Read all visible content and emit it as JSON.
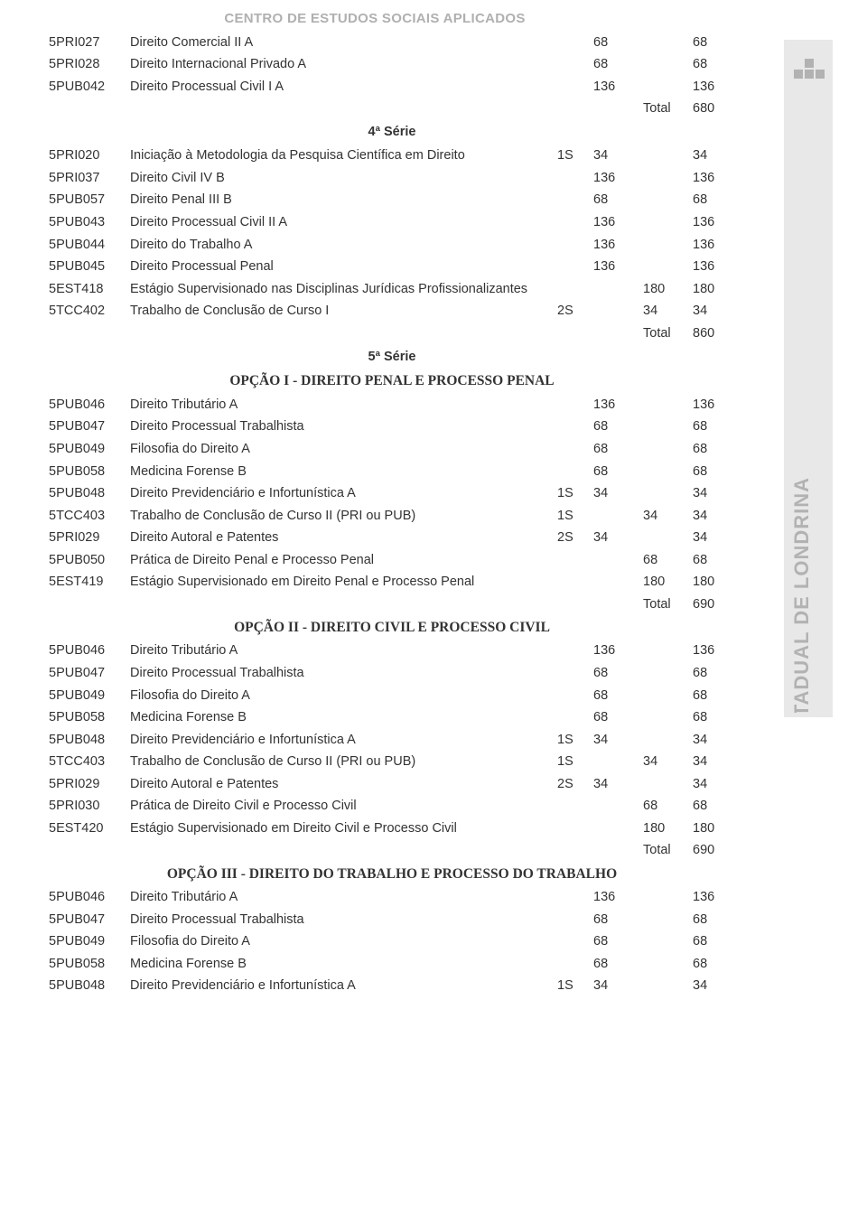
{
  "header": "CENTRO DE ESTUDOS SOCIAIS APLICADOS",
  "side_text": "UNIVERSIDADE ESTADUAL DE LONDRINA",
  "side_bg": "#e8e8e8",
  "side_text_color": "#b2b2b2",
  "text_color": "#333333",
  "header_color": "#b0b0b0",
  "font_size_body": 14.5,
  "font_size_header": 15,
  "rows": [
    {
      "type": "row",
      "code": "5PRI027",
      "name": "Direito Comercial II  A",
      "sem": "",
      "h1": "68",
      "h2": "",
      "h3": "68"
    },
    {
      "type": "row",
      "code": "5PRI028",
      "name": "Direito Internacional Privado A",
      "sem": "",
      "h1": "68",
      "h2": "",
      "h3": "68"
    },
    {
      "type": "row",
      "code": "5PUB042",
      "name": "Direito Processual Civil I A",
      "sem": "",
      "h1": "136",
      "h2": "",
      "h3": "136"
    },
    {
      "type": "total",
      "label": "Total",
      "value": "680"
    },
    {
      "type": "section",
      "label": "4ª Série"
    },
    {
      "type": "row",
      "code": "5PRI020",
      "name": "Iniciação à Metodologia da Pesquisa Científica em Direito",
      "sem": "1S",
      "h1": "34",
      "h2": "",
      "h3": "34"
    },
    {
      "type": "row",
      "code": "5PRI037",
      "name": "Direito Civil IV B",
      "sem": "",
      "h1": "136",
      "h2": "",
      "h3": "136"
    },
    {
      "type": "row",
      "code": "5PUB057",
      "name": "Direito Penal III B",
      "sem": "",
      "h1": "68",
      "h2": "",
      "h3": "68"
    },
    {
      "type": "row",
      "code": "5PUB043",
      "name": "Direito Processual Civil II A",
      "sem": "",
      "h1": "136",
      "h2": "",
      "h3": "136"
    },
    {
      "type": "row",
      "code": "5PUB044",
      "name": "Direito do Trabalho A",
      "sem": "",
      "h1": "136",
      "h2": "",
      "h3": "136"
    },
    {
      "type": "row",
      "code": "5PUB045",
      "name": "Direito Processual Penal",
      "sem": "",
      "h1": "136",
      "h2": "",
      "h3": "136"
    },
    {
      "type": "row",
      "code": "5EST418",
      "name": "Estágio Supervisionado nas Disciplinas Jurídicas Profissionalizantes",
      "sem": "",
      "h1": "",
      "h2": "180",
      "h3": "180"
    },
    {
      "type": "row",
      "code": "5TCC402",
      "name": "Trabalho de Conclusão de Curso I",
      "sem": "2S",
      "h1": "",
      "h2": "34",
      "h3": "34"
    },
    {
      "type": "total",
      "label": "Total",
      "value": "860"
    },
    {
      "type": "section",
      "label": "5ª Série"
    },
    {
      "type": "section-serif",
      "label": "OPÇÃO I - DIREITO PENAL E PROCESSO PENAL"
    },
    {
      "type": "row",
      "code": "5PUB046",
      "name": "Direito Tributário A",
      "sem": "",
      "h1": "136",
      "h2": "",
      "h3": "136"
    },
    {
      "type": "row",
      "code": "5PUB047",
      "name": "Direito Processual Trabalhista",
      "sem": "",
      "h1": "68",
      "h2": "",
      "h3": "68"
    },
    {
      "type": "row",
      "code": "5PUB049",
      "name": "Filosofia do Direito A",
      "sem": "",
      "h1": "68",
      "h2": "",
      "h3": "68"
    },
    {
      "type": "row",
      "code": "5PUB058",
      "name": "Medicina Forense B",
      "sem": "",
      "h1": "68",
      "h2": "",
      "h3": "68"
    },
    {
      "type": "row",
      "code": "5PUB048",
      "name": "Direito Previdenciário e Infortunística A",
      "sem": "1S",
      "h1": "34",
      "h2": "",
      "h3": "34"
    },
    {
      "type": "row",
      "code": "5TCC403",
      "name": "Trabalho de Conclusão de Curso II (PRI ou PUB)",
      "sem": "1S",
      "h1": "",
      "h2": "34",
      "h3": "34"
    },
    {
      "type": "row",
      "code": "5PRI029",
      "name": "Direito Autoral e Patentes",
      "sem": "2S",
      "h1": "34",
      "h2": "",
      "h3": "34"
    },
    {
      "type": "row",
      "code": "5PUB050",
      "name": "Prática de Direito Penal e Processo Penal",
      "sem": "",
      "h1": "",
      "h2": "68",
      "h3": "68"
    },
    {
      "type": "row",
      "code": "5EST419",
      "name": "Estágio Supervisionado em Direito Penal e Processo Penal",
      "sem": "",
      "h1": "",
      "h2": "180",
      "h3": "180"
    },
    {
      "type": "total",
      "label": "Total",
      "value": "690"
    },
    {
      "type": "section-serif",
      "label": "OPÇÃO II - DIREITO CIVIL E PROCESSO CIVIL"
    },
    {
      "type": "row",
      "code": "5PUB046",
      "name": "Direito Tributário A",
      "sem": "",
      "h1": "136",
      "h2": "",
      "h3": "136"
    },
    {
      "type": "row",
      "code": "5PUB047",
      "name": "Direito Processual Trabalhista",
      "sem": "",
      "h1": "68",
      "h2": "",
      "h3": "68"
    },
    {
      "type": "row",
      "code": "5PUB049",
      "name": "Filosofia do Direito A",
      "sem": "",
      "h1": "68",
      "h2": "",
      "h3": "68"
    },
    {
      "type": "row",
      "code": "5PUB058",
      "name": "Medicina Forense B",
      "sem": "",
      "h1": "68",
      "h2": "",
      "h3": "68"
    },
    {
      "type": "row",
      "code": "5PUB048",
      "name": "Direito Previdenciário e Infortunística A",
      "sem": "1S",
      "h1": "34",
      "h2": "",
      "h3": "34"
    },
    {
      "type": "row",
      "code": "5TCC403",
      "name": "Trabalho de Conclusão de Curso II (PRI ou PUB)",
      "sem": "1S",
      "h1": "",
      "h2": "34",
      "h3": "34"
    },
    {
      "type": "row",
      "code": "5PRI029",
      "name": "Direito Autoral e Patentes",
      "sem": "2S",
      "h1": "34",
      "h2": "",
      "h3": "34"
    },
    {
      "type": "row",
      "code": "5PRI030",
      "name": "Prática de Direito Civil e Processo Civil",
      "sem": "",
      "h1": "",
      "h2": "68",
      "h3": "68"
    },
    {
      "type": "row",
      "code": "5EST420",
      "name": "Estágio Supervisionado em Direito Civil e Processo Civil",
      "sem": "",
      "h1": "",
      "h2": "180",
      "h3": "180"
    },
    {
      "type": "total",
      "label": "Total",
      "value": "690"
    },
    {
      "type": "section-serif",
      "label": "OPÇÃO III - DIREITO DO TRABALHO E PROCESSO DO TRABALHO"
    },
    {
      "type": "row",
      "code": "5PUB046",
      "name": "Direito Tributário A",
      "sem": "",
      "h1": "136",
      "h2": "",
      "h3": "136"
    },
    {
      "type": "row",
      "code": "5PUB047",
      "name": "Direito Processual Trabalhista",
      "sem": "",
      "h1": "68",
      "h2": "",
      "h3": "68"
    },
    {
      "type": "row",
      "code": "5PUB049",
      "name": "Filosofia do Direito A",
      "sem": "",
      "h1": "68",
      "h2": "",
      "h3": "68"
    },
    {
      "type": "row",
      "code": "5PUB058",
      "name": "Medicina Forense B",
      "sem": "",
      "h1": "68",
      "h2": "",
      "h3": "68"
    },
    {
      "type": "row",
      "code": "5PUB048",
      "name": "Direito Previdenciário e Infortunística A",
      "sem": "1S",
      "h1": "34",
      "h2": "",
      "h3": "34"
    }
  ]
}
